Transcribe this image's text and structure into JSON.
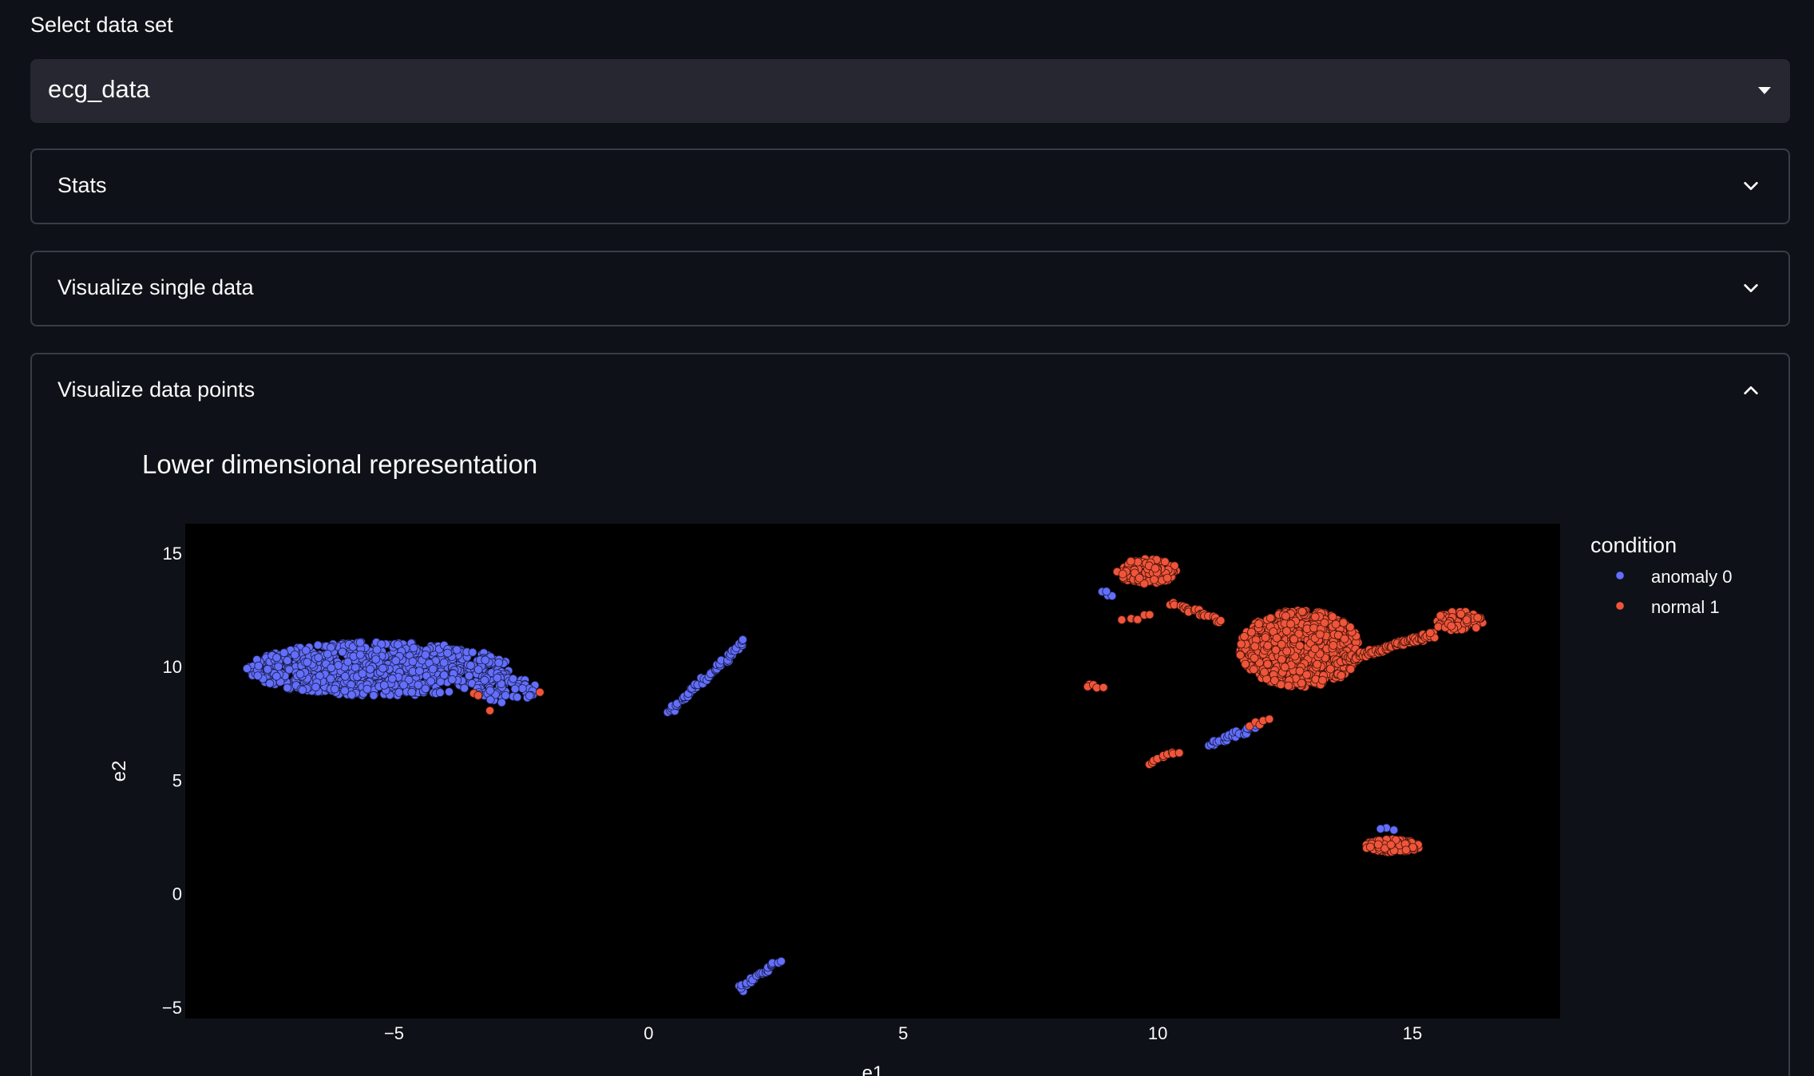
{
  "select": {
    "label": "Select data set",
    "value": "ecg_data"
  },
  "expanders": [
    {
      "title": "Stats",
      "expanded": false
    },
    {
      "title": "Visualize single data",
      "expanded": false
    },
    {
      "title": "Visualize data points",
      "expanded": true
    }
  ],
  "plot": {
    "title": "Lower dimensional representation"
  },
  "colors": {
    "background": "#0e1117",
    "plot_background": "#000000",
    "anomaly": "#636efa",
    "normal": "#ef553b"
  },
  "chart_data": {
    "type": "scatter",
    "title": "Lower dimensional representation",
    "xlabel": "e1",
    "ylabel": "e2",
    "xlim": [
      -9.1,
      17.9
    ],
    "ylim": [
      -5.5,
      16.3
    ],
    "xticks": [
      -5,
      0,
      5,
      10,
      15
    ],
    "yticks": [
      -5,
      0,
      5,
      10,
      15
    ],
    "xtick_labels": [
      "−5",
      "0",
      "5",
      "10",
      "15"
    ],
    "ytick_labels": [
      "−5",
      "0",
      "5",
      "10",
      "15"
    ],
    "grid": false,
    "legend": {
      "title": "condition",
      "placement": "right",
      "entries": [
        "anomaly 0",
        "normal 1"
      ]
    },
    "series": [
      {
        "name": "anomaly 0",
        "color": "#636efa",
        "clusters": [
          {
            "shape": "ellipse",
            "cx": -5.3,
            "cy": 9.9,
            "rx": 2.6,
            "ry": 1.2,
            "n": 850
          },
          {
            "shape": "ellipse",
            "cx": -2.8,
            "cy": 9.0,
            "rx": 0.6,
            "ry": 0.6,
            "n": 60
          },
          {
            "shape": "line",
            "x0": 0.4,
            "y0": 8.0,
            "x1": 1.9,
            "y1": 11.1,
            "n": 60
          },
          {
            "shape": "line",
            "x0": 1.8,
            "y0": -4.2,
            "x1": 2.6,
            "y1": -2.9,
            "n": 30
          },
          {
            "shape": "line",
            "x0": 11.0,
            "y0": 6.6,
            "x1": 12.0,
            "y1": 7.4,
            "n": 35
          },
          {
            "shape": "ellipse",
            "cx": 9.0,
            "cy": 13.0,
            "rx": 0.15,
            "ry": 0.5,
            "n": 4
          },
          {
            "shape": "ellipse",
            "cx": 12.0,
            "cy": 10.5,
            "rx": 0.3,
            "ry": 0.5,
            "n": 4
          },
          {
            "shape": "ellipse",
            "cx": 14.5,
            "cy": 2.8,
            "rx": 0.2,
            "ry": 0.1,
            "n": 3
          }
        ]
      },
      {
        "name": "normal 1",
        "color": "#ef553b",
        "clusters": [
          {
            "shape": "ellipse",
            "cx": 12.8,
            "cy": 10.8,
            "rx": 1.2,
            "ry": 1.7,
            "n": 700
          },
          {
            "shape": "line",
            "x0": 13.5,
            "y0": 10.2,
            "x1": 15.4,
            "y1": 11.4,
            "n": 120
          },
          {
            "shape": "ellipse",
            "cx": 15.9,
            "cy": 12.0,
            "rx": 0.5,
            "ry": 0.45,
            "n": 70
          },
          {
            "shape": "ellipse",
            "cx": 9.8,
            "cy": 14.2,
            "rx": 0.6,
            "ry": 0.55,
            "n": 140
          },
          {
            "shape": "line",
            "x0": 10.3,
            "y0": 12.8,
            "x1": 11.2,
            "y1": 12.0,
            "n": 25
          },
          {
            "shape": "ellipse",
            "cx": 14.6,
            "cy": 2.1,
            "rx": 0.55,
            "ry": 0.3,
            "n": 140
          },
          {
            "shape": "line",
            "x0": 9.8,
            "y0": 5.8,
            "x1": 10.4,
            "y1": 6.2,
            "n": 10
          },
          {
            "shape": "line",
            "x0": 8.6,
            "y0": 9.2,
            "x1": 8.9,
            "y1": 9.0,
            "n": 5
          },
          {
            "shape": "line",
            "x0": 9.3,
            "y0": 12.0,
            "x1": 9.9,
            "y1": 12.3,
            "n": 6
          },
          {
            "shape": "line",
            "x0": 11.8,
            "y0": 7.4,
            "x1": 12.2,
            "y1": 7.6,
            "n": 5
          },
          {
            "shape": "ellipse",
            "cx": -2.1,
            "cy": 8.9,
            "rx": 0.05,
            "ry": 0.05,
            "n": 1
          },
          {
            "shape": "ellipse",
            "cx": -3.4,
            "cy": 8.8,
            "rx": 0.1,
            "ry": 0.1,
            "n": 2
          },
          {
            "shape": "ellipse",
            "cx": -3.1,
            "cy": 8.1,
            "rx": 0.05,
            "ry": 0.05,
            "n": 1
          }
        ]
      }
    ]
  }
}
